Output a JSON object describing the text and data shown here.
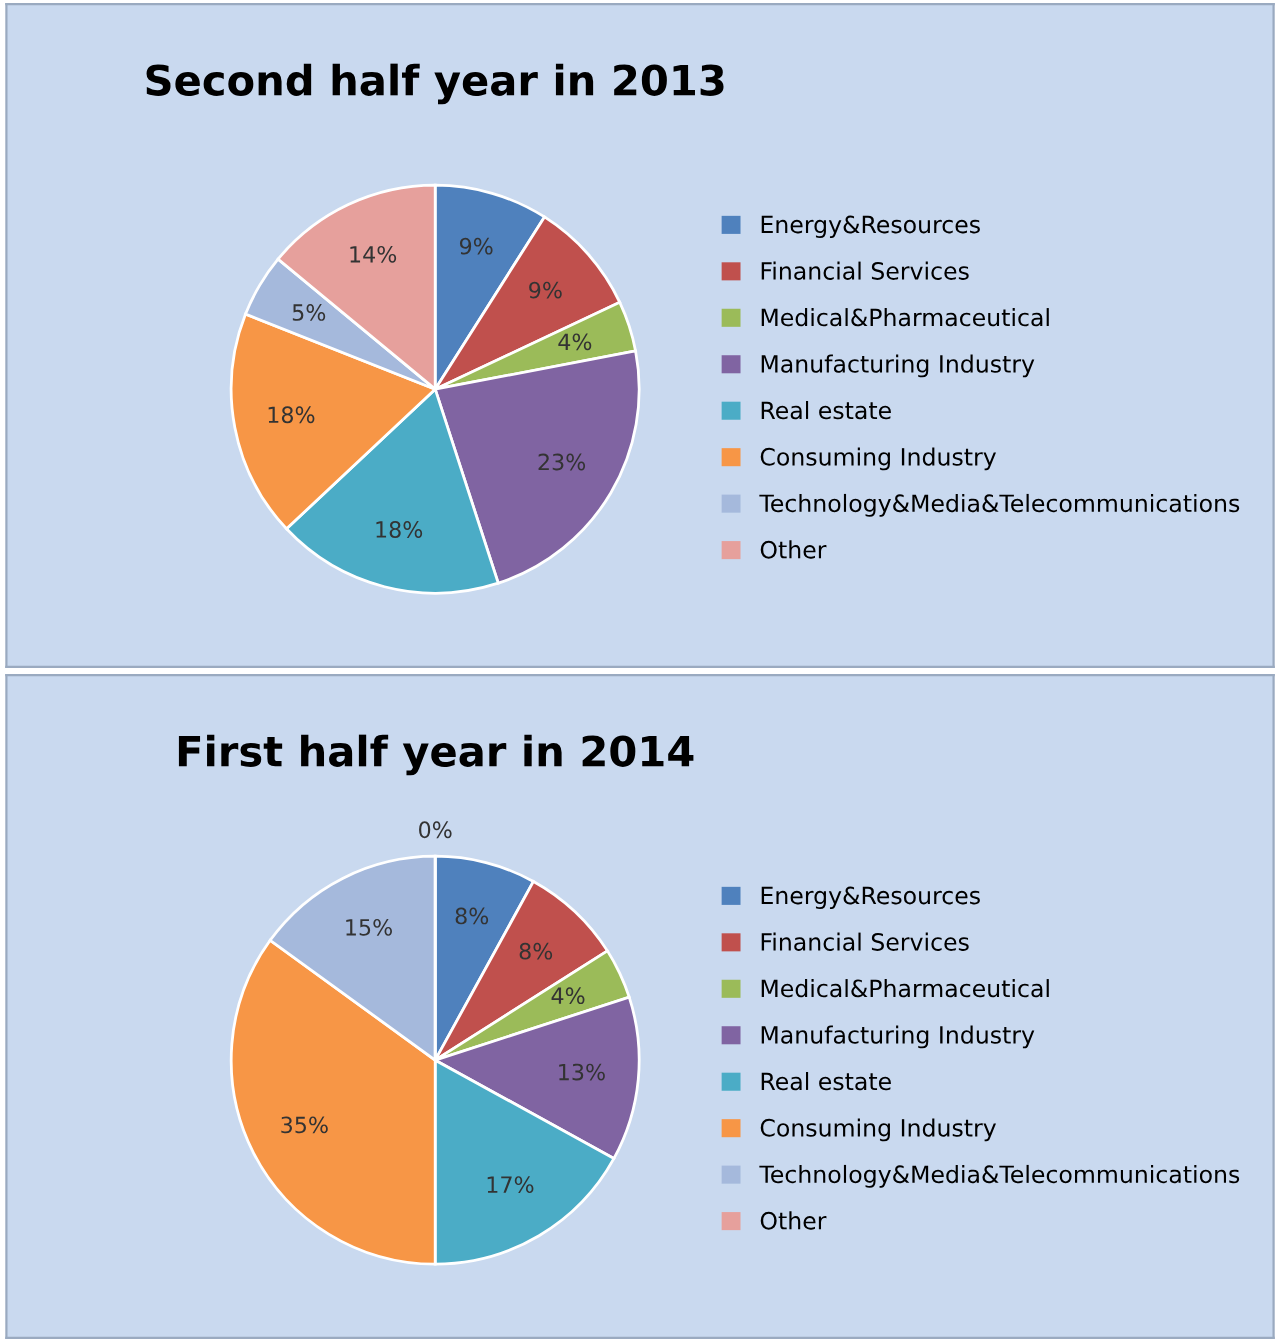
{
  "chart_data": [
    {
      "type": "pie",
      "title": "Second half year in 2013",
      "categories": [
        "Energy&Resources",
        "Financial Services",
        "Medical&Pharmaceutical",
        "Manufacturing Industry",
        "Real estate",
        "Consuming Industry",
        "Technology&Media&Telecommunications",
        "Other"
      ],
      "values": [
        9,
        9,
        4,
        23,
        18,
        18,
        5,
        14
      ],
      "colors": [
        "#4f81bd",
        "#c0504d",
        "#9bbb59",
        "#8064a2",
        "#4bacc6",
        "#f79646",
        "#a5b9dc",
        "#e6a09c"
      ],
      "value_labels": [
        "9%",
        "9%",
        "4%",
        "23%",
        "18%",
        "18%",
        "5%",
        "14%"
      ],
      "legend": "right"
    },
    {
      "type": "pie",
      "title": "First half year in 2014",
      "categories": [
        "Energy&Resources",
        "Financial Services",
        "Medical&Pharmaceutical",
        "Manufacturing Industry",
        "Real estate",
        "Consuming Industry",
        "Technology&Media&Telecommunications",
        "Other"
      ],
      "values": [
        8,
        8,
        4,
        13,
        17,
        35,
        15,
        0
      ],
      "colors": [
        "#4f81bd",
        "#c0504d",
        "#9bbb59",
        "#8064a2",
        "#4bacc6",
        "#f79646",
        "#a5b9dc",
        "#e6a09c"
      ],
      "value_labels": [
        "8%",
        "8%",
        "4%",
        "13%",
        "17%",
        "35%",
        "15%",
        "0%"
      ],
      "legend": "right"
    }
  ]
}
